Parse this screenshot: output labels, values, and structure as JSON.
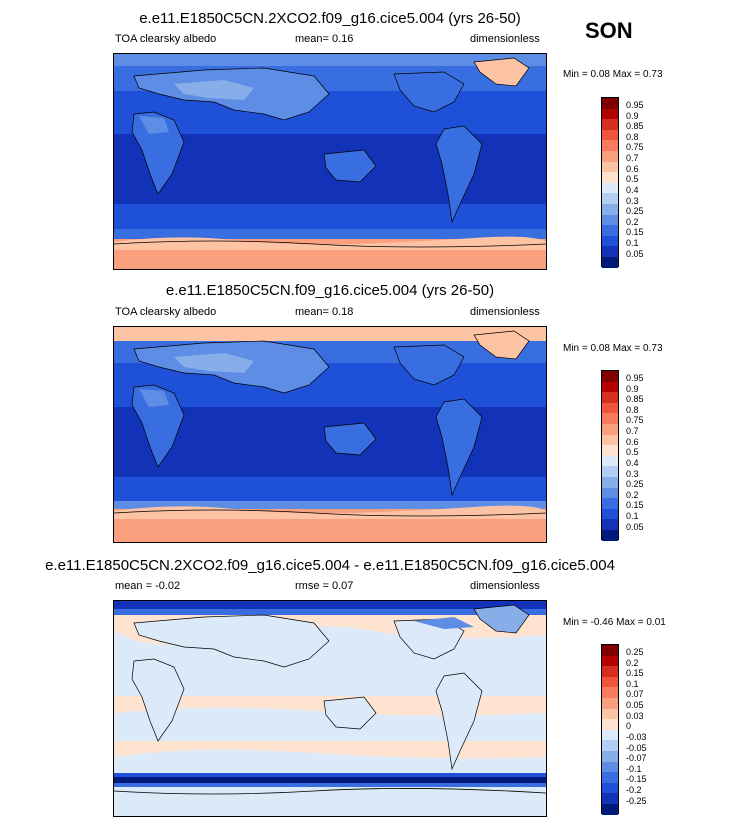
{
  "season": "SON",
  "panels": [
    {
      "title": "e.e11.E1850C5CN.2XCO2.f09_g16.cice5.004 (yrs 26-50)",
      "left_label": "TOA clearsky albedo",
      "mid_label": "mean=  0.16",
      "right_label": "dimensionless",
      "minmax": "Min =  0.08 Max =  0.73",
      "colorbar": {
        "labels": [
          "0.95",
          "0.9",
          "0.85",
          "0.8",
          "0.75",
          "0.7",
          "0.6",
          "0.5",
          "0.4",
          "0.3",
          "0.25",
          "0.2",
          "0.15",
          "0.1",
          "0.05"
        ],
        "colors": [
          "#7f0000",
          "#b30000",
          "#d62f1f",
          "#ef553a",
          "#f77b5c",
          "#fba07f",
          "#fcc3a5",
          "#fde3d0",
          "#dce9f8",
          "#b4cdf2",
          "#88aeea",
          "#5d8de4",
          "#386ee0",
          "#1f50d8",
          "#1233b8",
          "#001a7a"
        ]
      }
    },
    {
      "title": "e.e11.E1850C5CN.f09_g16.cice5.004 (yrs 26-50)",
      "left_label": "TOA clearsky albedo",
      "mid_label": "mean=  0.18",
      "right_label": "dimensionless",
      "minmax": "Min =  0.08 Max =  0.73",
      "colorbar": {
        "labels": [
          "0.95",
          "0.9",
          "0.85",
          "0.8",
          "0.75",
          "0.7",
          "0.6",
          "0.5",
          "0.4",
          "0.3",
          "0.25",
          "0.2",
          "0.15",
          "0.1",
          "0.05"
        ],
        "colors": [
          "#7f0000",
          "#b30000",
          "#d62f1f",
          "#ef553a",
          "#f77b5c",
          "#fba07f",
          "#fcc3a5",
          "#fde3d0",
          "#dce9f8",
          "#b4cdf2",
          "#88aeea",
          "#5d8de4",
          "#386ee0",
          "#1f50d8",
          "#1233b8",
          "#001a7a"
        ]
      }
    },
    {
      "title": "e.e11.E1850C5CN.2XCO2.f09_g16.cice5.004 - e.e11.E1850C5CN.f09_g16.cice5.004",
      "left_label": "mean =  -0.02",
      "mid_label": "rmse =  0.07",
      "right_label": "dimensionless",
      "minmax": "Min =  -0.46 Max =  0.01",
      "colorbar": {
        "labels": [
          "0.25",
          "0.2",
          "0.15",
          "0.1",
          "0.07",
          "0.05",
          "0.03",
          "0",
          "-0.03",
          "-0.05",
          "-0.07",
          "-0.1",
          "-0.15",
          "-0.2",
          "-0.25"
        ],
        "colors": [
          "#7f0000",
          "#b30000",
          "#d62f1f",
          "#ef553a",
          "#f77b5c",
          "#fba07f",
          "#fcc3a5",
          "#fde3d0",
          "#dce9f8",
          "#b4cdf2",
          "#88aeea",
          "#5d8de4",
          "#386ee0",
          "#1f50d8",
          "#1233b8",
          "#001a7a"
        ]
      }
    }
  ]
}
